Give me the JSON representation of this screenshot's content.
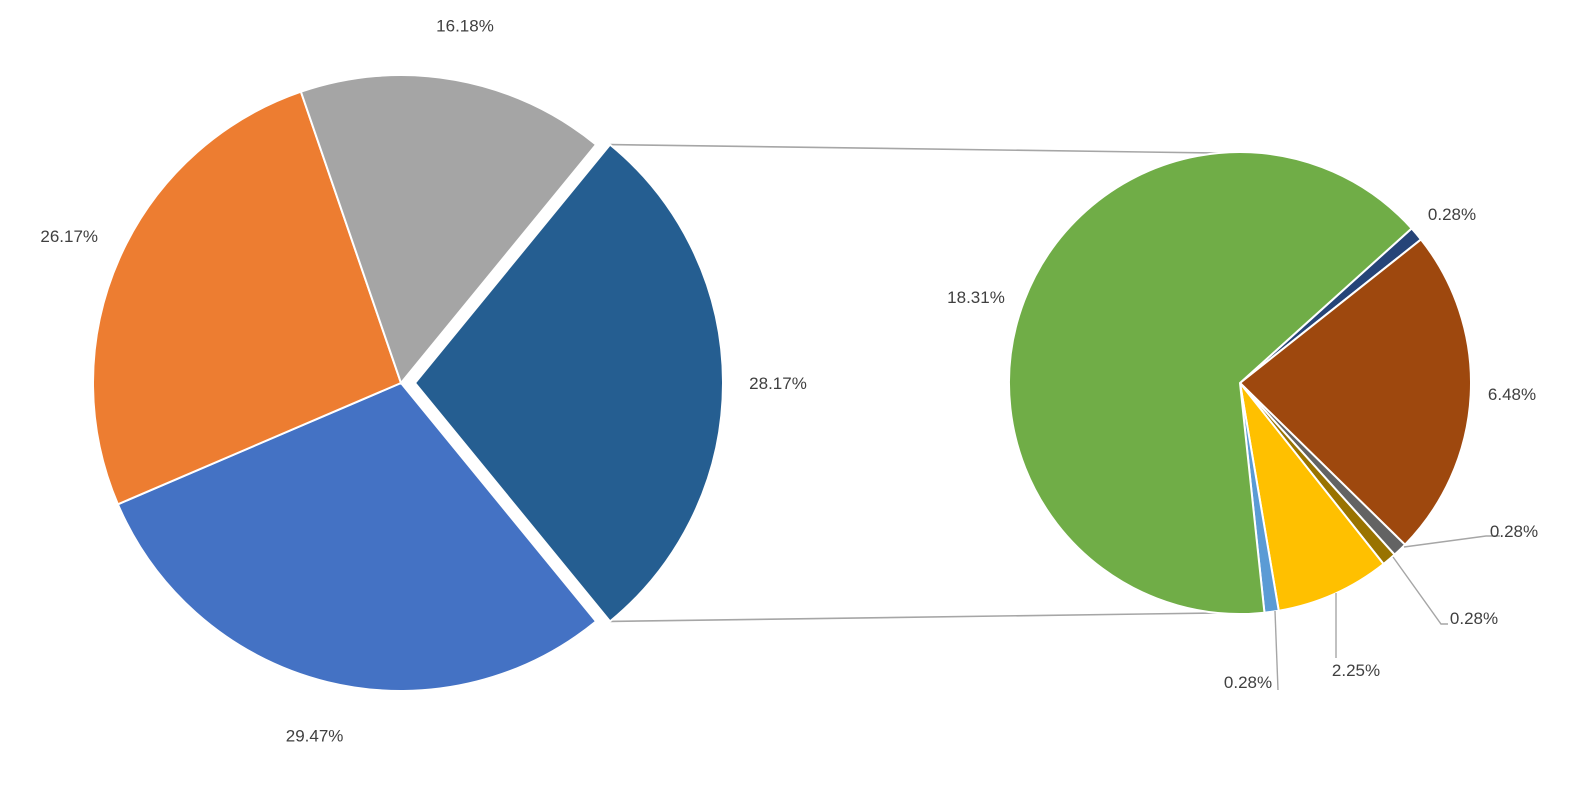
{
  "chart_data": {
    "type": "pie",
    "subtype": "pie-of-pie",
    "title": "",
    "legend": "none",
    "primary_pie": {
      "slices": [
        {
          "value": 28.17,
          "label": "28.17%",
          "color": "#255E91",
          "exploded": true,
          "is_other": true
        },
        {
          "value": 29.47,
          "label": "29.47%",
          "color": "#4472C4"
        },
        {
          "value": 26.17,
          "label": "26.17%",
          "color": "#ED7D31"
        },
        {
          "value": 16.18,
          "label": "16.18%",
          "color": "#A5A5A5"
        }
      ]
    },
    "secondary_pie": {
      "slices": [
        {
          "value": 0.28,
          "label": "0.28%",
          "color": "#264478"
        },
        {
          "value": 6.48,
          "label": "6.48%",
          "color": "#9E480E"
        },
        {
          "value": 0.28,
          "label": "0.28%",
          "color": "#636363"
        },
        {
          "value": 0.28,
          "label": "0.28%",
          "color": "#997300"
        },
        {
          "value": 2.25,
          "label": "2.25%",
          "color": "#FFC000"
        },
        {
          "value": 0.28,
          "label": "0.28%",
          "color": "#5B9BD5"
        },
        {
          "value": 18.31,
          "label": "18.31%",
          "color": "#70AD47"
        }
      ]
    }
  }
}
